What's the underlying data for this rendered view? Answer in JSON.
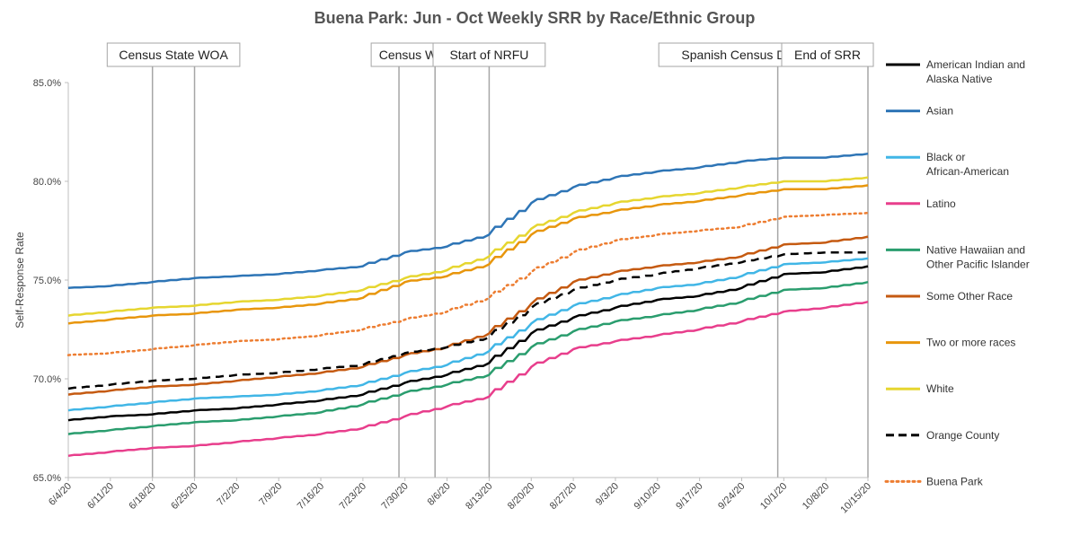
{
  "chart_data": {
    "type": "line",
    "title": "Buena Park: Jun - Oct Weekly SRR by Race/Ethnic Group",
    "ylabel": "Self-Response Rate",
    "xlabel": "",
    "ylim": [
      65,
      85
    ],
    "yticks": [
      "65.0%",
      "70.0%",
      "75.0%",
      "80.0%",
      "85.0%"
    ],
    "ytick_values": [
      65,
      70,
      75,
      80,
      85
    ],
    "xlim": [
      "6/4/20",
      "10/15/20"
    ],
    "x": [
      "6/4/20",
      "6/11/20",
      "6/18/20",
      "6/25/20",
      "7/2/20",
      "7/9/20",
      "7/16/20",
      "7/23/20",
      "7/30/20",
      "8/6/20",
      "8/13/20",
      "8/20/20",
      "8/27/20",
      "9/3/20",
      "9/10/20",
      "9/17/20",
      "9/24/20",
      "10/1/20",
      "10/8/20",
      "10/15/20"
    ],
    "grid": false,
    "legend_position": "right",
    "events": [
      {
        "label": "Census State WOA",
        "x": [
          "6/18/20",
          "6/25/20"
        ]
      },
      {
        "label": "Census WOA",
        "x": [
          "7/29/20",
          "8/4/20"
        ]
      },
      {
        "label": "Start of NRFU",
        "x": [
          "8/13/20"
        ]
      },
      {
        "label": "Spanish Census Day of Action",
        "x": [
          "9/30/20"
        ]
      },
      {
        "label": "End of SRR",
        "x": [
          "10/15/20"
        ]
      }
    ],
    "series": [
      {
        "name": "American Indian and Alaska Native",
        "color": "#000000",
        "style": "solid",
        "values": [
          67.9,
          68.1,
          68.2,
          68.4,
          68.5,
          68.7,
          68.9,
          69.2,
          69.8,
          70.2,
          70.8,
          72.3,
          73.1,
          73.6,
          74.0,
          74.2,
          74.6,
          75.3,
          75.4,
          75.7
        ]
      },
      {
        "name": "Asian",
        "color": "#2e75b6",
        "style": "solid",
        "values": [
          74.6,
          74.7,
          74.9,
          75.1,
          75.2,
          75.3,
          75.5,
          75.7,
          76.4,
          76.7,
          77.3,
          78.9,
          79.7,
          80.2,
          80.5,
          80.7,
          81.0,
          81.2,
          81.2,
          81.4
        ]
      },
      {
        "name": "Black or African-American",
        "color": "#41b6e6",
        "style": "solid",
        "values": [
          68.4,
          68.6,
          68.8,
          69.0,
          69.1,
          69.2,
          69.4,
          69.7,
          70.3,
          70.7,
          71.4,
          72.8,
          73.7,
          74.2,
          74.6,
          74.8,
          75.2,
          75.8,
          75.9,
          76.1
        ]
      },
      {
        "name": "Latino",
        "color": "#e83e8c",
        "style": "solid",
        "values": [
          66.1,
          66.3,
          66.5,
          66.6,
          66.8,
          67.0,
          67.2,
          67.5,
          68.1,
          68.6,
          69.1,
          70.6,
          71.5,
          71.9,
          72.2,
          72.5,
          72.9,
          73.4,
          73.6,
          73.9
        ]
      },
      {
        "name": "Native Hawaiian and Other Pacific Islander",
        "color": "#2a9d6e",
        "style": "solid",
        "values": [
          67.2,
          67.4,
          67.6,
          67.8,
          67.9,
          68.1,
          68.3,
          68.7,
          69.3,
          69.7,
          70.2,
          71.6,
          72.4,
          72.9,
          73.2,
          73.5,
          73.9,
          74.5,
          74.6,
          74.9
        ]
      },
      {
        "name": "Some Other Race",
        "color": "#c55a11",
        "style": "solid",
        "values": [
          69.2,
          69.4,
          69.6,
          69.7,
          69.9,
          70.1,
          70.3,
          70.6,
          71.2,
          71.6,
          72.3,
          73.8,
          74.9,
          75.4,
          75.7,
          75.9,
          76.2,
          76.8,
          76.9,
          77.2
        ]
      },
      {
        "name": "Two or more races",
        "color": "#e8960c",
        "style": "solid",
        "values": [
          72.8,
          73.0,
          73.2,
          73.3,
          73.5,
          73.6,
          73.8,
          74.1,
          74.9,
          75.2,
          75.8,
          77.3,
          78.1,
          78.5,
          78.8,
          79.0,
          79.3,
          79.6,
          79.6,
          79.8
        ]
      },
      {
        "name": "White",
        "color": "#e6d630",
        "style": "solid",
        "values": [
          73.2,
          73.4,
          73.6,
          73.7,
          73.9,
          74.0,
          74.2,
          74.5,
          75.1,
          75.5,
          76.2,
          77.6,
          78.4,
          78.9,
          79.2,
          79.4,
          79.7,
          80.0,
          80.0,
          80.2
        ]
      },
      {
        "name": "Orange County",
        "color": "#000000",
        "style": "dashed",
        "values": [
          69.5,
          69.7,
          69.9,
          70.0,
          70.2,
          70.3,
          70.5,
          70.7,
          71.3,
          71.6,
          72.1,
          73.6,
          74.5,
          75.0,
          75.3,
          75.6,
          75.9,
          76.3,
          76.4,
          76.4
        ]
      },
      {
        "name": "Buena Park",
        "color": "#ed7d31",
        "style": "dotted",
        "values": [
          71.2,
          71.3,
          71.5,
          71.7,
          71.9,
          72.0,
          72.2,
          72.5,
          73.0,
          73.4,
          74.1,
          75.4,
          76.4,
          77.0,
          77.3,
          77.5,
          77.7,
          78.2,
          78.3,
          78.4
        ]
      }
    ]
  }
}
